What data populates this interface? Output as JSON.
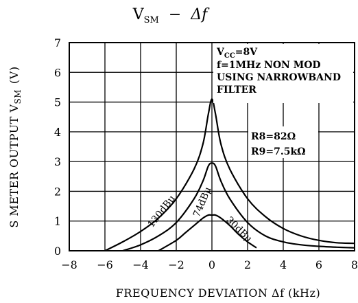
{
  "chart_data": {
    "type": "line",
    "title": "V_SM − Δf",
    "title_parts": {
      "v": "V",
      "sm": "SM",
      "dash": "−",
      "delta": "Δf"
    },
    "xlabel": "FREQUENCY DEVIATION Δf (kHz)",
    "ylabel_parts": {
      "main": "S METER OUTPUT V",
      "sub": "SM",
      "unit": "(V)"
    },
    "xlim": [
      -8,
      8
    ],
    "ylim": [
      0,
      7
    ],
    "xticks": [
      "−8",
      "−6",
      "−4",
      "−2",
      "0",
      "2",
      "4",
      "6",
      "8"
    ],
    "yticks": [
      "0",
      "1",
      "2",
      "3",
      "4",
      "5",
      "6",
      "7"
    ],
    "grid": true,
    "notes": {
      "vcc": "V_CC=8V",
      "vcc_v": "V",
      "vcc_sub": "CC",
      "vcc_rest": "=8V",
      "line2": "f=1MHz  NON  MOD",
      "line3": "USING  NARROWBAND",
      "line4": "FILTER",
      "r8": "R8=82Ω",
      "r9": "R9=7.5kΩ"
    },
    "series": [
      {
        "name": "130dBμ",
        "x": [
          -6.0,
          -5.0,
          -4.0,
          -3.0,
          -2.0,
          -1.0,
          -0.5,
          -0.2,
          0.0,
          0.2,
          0.5,
          1.0,
          2.0,
          3.0,
          4.0,
          5.0,
          6.0,
          7.0,
          8.0
        ],
        "y": [
          0.0,
          0.3,
          0.65,
          1.1,
          1.75,
          2.75,
          3.6,
          4.6,
          5.1,
          4.6,
          3.6,
          2.75,
          1.75,
          1.15,
          0.75,
          0.5,
          0.35,
          0.27,
          0.25
        ]
      },
      {
        "name": "74dBμ",
        "x": [
          -5.0,
          -4.0,
          -3.0,
          -2.0,
          -1.0,
          -0.5,
          -0.2,
          0.0,
          0.2,
          0.5,
          1.0,
          2.0,
          3.0,
          4.0,
          5.0,
          6.0,
          7.0,
          8.0
        ],
        "y": [
          0.0,
          0.2,
          0.5,
          0.95,
          1.75,
          2.35,
          2.85,
          2.95,
          2.85,
          2.35,
          1.75,
          0.95,
          0.5,
          0.3,
          0.2,
          0.15,
          0.12,
          0.1
        ]
      },
      {
        "name": "30dBμ",
        "x": [
          -3.0,
          -2.0,
          -1.5,
          -1.0,
          -0.5,
          -0.2,
          0.0,
          0.2,
          0.5,
          1.0,
          1.5,
          2.0,
          2.5
        ],
        "y": [
          0.0,
          0.35,
          0.6,
          0.85,
          1.1,
          1.2,
          1.2,
          1.2,
          1.1,
          0.85,
          0.55,
          0.3,
          0.1
        ]
      }
    ]
  },
  "curve_labels": [
    "130dBμ",
    "74dBμ",
    "30dBμ"
  ]
}
